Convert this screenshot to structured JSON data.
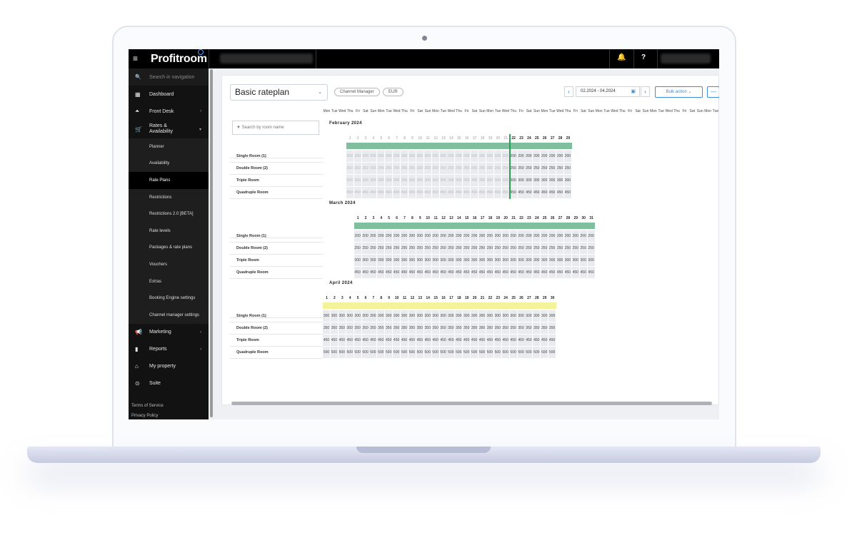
{
  "topbar": {
    "logo": "Profitroom",
    "icons": [
      "menu-icon",
      "bell-icon",
      "help-icon"
    ]
  },
  "sidebar": {
    "search_placeholder": "Search in navigation",
    "items": [
      {
        "label": "Dashboard",
        "icon": "dashboard-icon"
      },
      {
        "label": "Front Desk",
        "icon": "bell-icon"
      },
      {
        "label": "Rates & Availability",
        "icon": "cart-icon"
      },
      {
        "label": "Marketing",
        "icon": "megaphone-icon"
      },
      {
        "label": "Reports",
        "icon": "chart-icon"
      },
      {
        "label": "My property",
        "icon": "home-icon"
      },
      {
        "label": "Suite",
        "icon": "suite-icon"
      }
    ],
    "subitems": [
      "Planner",
      "Availability",
      "Rate Plans",
      "Restrictions",
      "Restrictions 2.0 [BETA]",
      "Rate levels",
      "Packages & rate plans",
      "Vouchers",
      "Extras",
      "Booking Engine settings",
      "Channel manager settings"
    ],
    "active_sub": "Rate Plans",
    "footer": [
      "Terms of Service",
      "Privacy Policy"
    ]
  },
  "header": {
    "title": "Basic rateplan",
    "pills": [
      "Channel Manager",
      "EUR"
    ],
    "date_range": "02.2024 - 04.2024",
    "bulk_label": "Bulk action",
    "more_label": "—"
  },
  "grid": {
    "search_placeholder": "Search by room name",
    "weekdays": [
      "Mon",
      "Tue",
      "Wed",
      "Thu",
      "Fri",
      "Sat",
      "Sun"
    ],
    "rooms": [
      "Single Room (1)",
      "Double Room (2)",
      "Triple Room",
      "Quadruple Room"
    ],
    "months": [
      {
        "title": "February 2024",
        "days": 29,
        "first_dow": 3,
        "past_until": 21,
        "prices": [
          "200",
          "250",
          "300",
          "450"
        ],
        "bar": "green"
      },
      {
        "title": "March 2024",
        "days": 31,
        "first_dow": 4,
        "past_until": 0,
        "prices": [
          "200",
          "250",
          "300",
          "450"
        ],
        "bar": "green"
      },
      {
        "title": "April 2024",
        "days": 30,
        "first_dow": 0,
        "past_until": 0,
        "prices": [
          "300",
          "350",
          "450",
          "500"
        ],
        "bar": "yellow"
      }
    ]
  },
  "colors": {
    "green_bar": "#7fbf9e",
    "yellow_bar": "#f3f39a",
    "accent": "#3d8ed6",
    "today_line": "#2e9b54"
  }
}
